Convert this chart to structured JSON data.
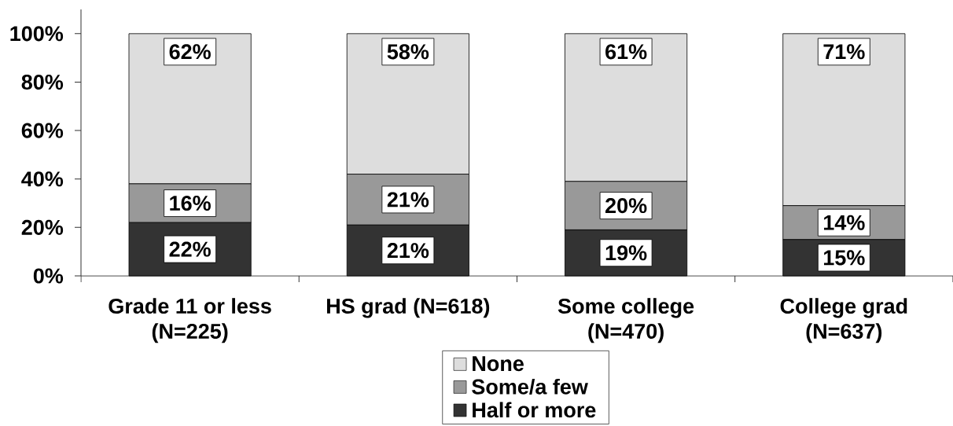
{
  "chart_data": {
    "type": "bar",
    "stacked": true,
    "categories": [
      "Grade 11 or less (N=225)",
      "HS grad (N=618)",
      "Some college (N=470)",
      "College grad (N=637)"
    ],
    "series": [
      {
        "name": "Half or more",
        "color": "#333333",
        "values": [
          22,
          21,
          19,
          15
        ],
        "value_labels": [
          "22%",
          "21%",
          "19%",
          "15%"
        ]
      },
      {
        "name": "Some/a few",
        "color": "#999999",
        "values": [
          16,
          21,
          20,
          14
        ],
        "value_labels": [
          "16%",
          "21%",
          "20%",
          "14%"
        ]
      },
      {
        "name": "None",
        "color": "#dddddd",
        "values": [
          62,
          58,
          61,
          71
        ],
        "value_labels": [
          "62%",
          "58%",
          "61%",
          "71%"
        ]
      }
    ],
    "ylim": [
      0,
      110
    ],
    "yticks": [
      {
        "value": 0,
        "label": "0%"
      },
      {
        "value": 20,
        "label": "20%"
      },
      {
        "value": 40,
        "label": "40%"
      },
      {
        "value": 60,
        "label": "60%"
      },
      {
        "value": 80,
        "label": "80%"
      },
      {
        "value": 100,
        "label": "100%"
      }
    ],
    "legend": "bottom"
  }
}
